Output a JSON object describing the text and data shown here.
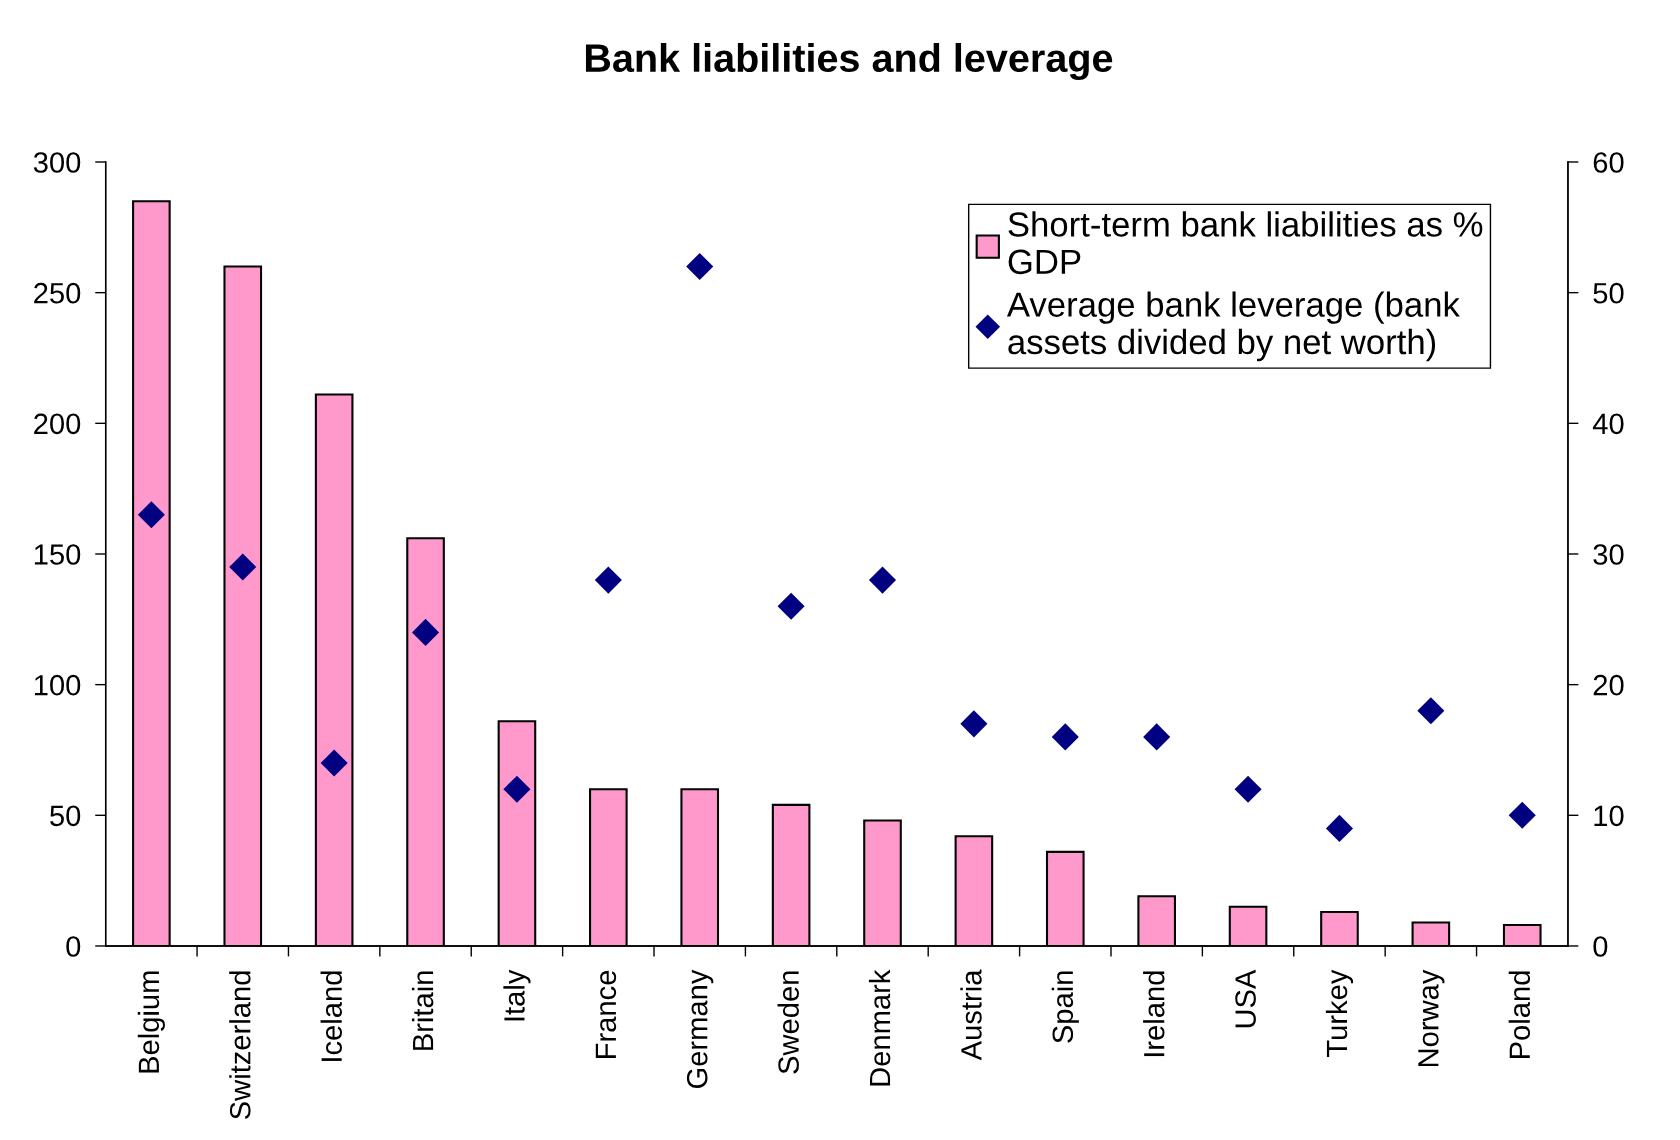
{
  "chart_data": {
    "type": "bar",
    "title": "Bank liabilities and leverage",
    "categories": [
      "Belgium",
      "Switzerland",
      "Iceland",
      "Britain",
      "Italy",
      "France",
      "Germany",
      "Sweden",
      "Denmark",
      "Austria",
      "Spain",
      "Ireland",
      "USA",
      "Turkey",
      "Norway",
      "Poland"
    ],
    "series": [
      {
        "name": "Short-term bank liabilities as %\nGDP",
        "color": "#ff99cc",
        "values": [
          285,
          260,
          211,
          156,
          86,
          60,
          60,
          54,
          48,
          42,
          36,
          19,
          15,
          13,
          9,
          8
        ]
      },
      {
        "name": "Average bank leverage (bank\nassets divided by net worth)",
        "type": "scatter",
        "axis": "y2",
        "color": "#000080",
        "values": [
          33,
          29,
          14,
          24,
          12,
          28,
          52,
          26,
          28,
          17,
          16,
          16,
          12,
          9,
          18,
          10
        ]
      }
    ],
    "ylim": [
      0,
      300
    ],
    "yticks": [
      0,
      50,
      100,
      150,
      200,
      250,
      300
    ],
    "y2lim": [
      0,
      60
    ],
    "y2ticks": [
      0,
      10,
      20,
      30,
      40,
      50,
      60
    ],
    "marker": "diamond",
    "grid": false,
    "legend": "top right"
  }
}
